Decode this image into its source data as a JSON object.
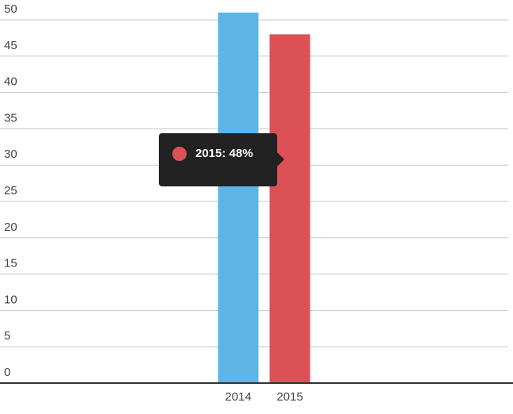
{
  "chart_data": {
    "type": "bar",
    "categories": [
      "2014",
      "2015"
    ],
    "values": [
      51,
      48
    ],
    "colors": [
      "#5db5e6",
      "#dc5156"
    ],
    "ylim": [
      0,
      50
    ],
    "yticks": [
      0,
      5,
      10,
      15,
      20,
      25,
      30,
      35,
      40,
      45,
      50
    ],
    "grid": true,
    "tooltip": "2015: 48%"
  }
}
